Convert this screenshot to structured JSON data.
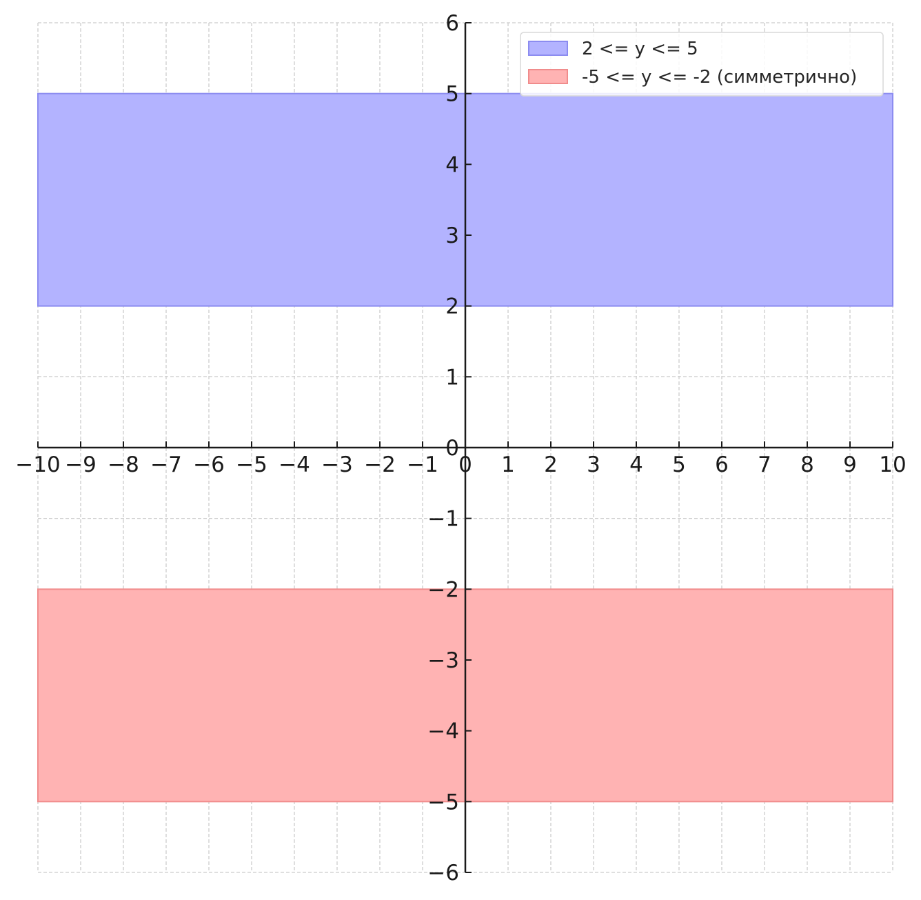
{
  "chart_data": {
    "type": "area",
    "title": "",
    "xlabel": "",
    "ylabel": "",
    "xlim": [
      -10,
      10
    ],
    "ylim": [
      -6,
      6
    ],
    "grid": true,
    "grid_style": "dashed",
    "axes_style": "centered-at-origin",
    "legend_position": "top-right",
    "x_ticks": [
      "−10",
      "−9",
      "−8",
      "−7",
      "−6",
      "−5",
      "−4",
      "−3",
      "−2",
      "−1",
      "0",
      "1",
      "2",
      "3",
      "4",
      "5",
      "6",
      "7",
      "8",
      "9",
      "10"
    ],
    "y_ticks": [
      "−6",
      "−5",
      "−4",
      "−3",
      "−2",
      "−1",
      "0",
      "1",
      "2",
      "3",
      "4",
      "5",
      "6"
    ],
    "x_tick_values": [
      -10,
      -9,
      -8,
      -7,
      -6,
      -5,
      -4,
      -3,
      -2,
      -1,
      0,
      1,
      2,
      3,
      4,
      5,
      6,
      7,
      8,
      9,
      10
    ],
    "y_tick_values": [
      -6,
      -5,
      -4,
      -3,
      -2,
      -1,
      0,
      1,
      2,
      3,
      4,
      5,
      6
    ],
    "series": [
      {
        "name": "2 <= y <= 5",
        "x": [
          -10,
          10
        ],
        "y_lower": 2,
        "y_upper": 5,
        "fill_color": "#b3b3ff",
        "edge_color": "#8c8cf0"
      },
      {
        "name": "-5 <= y <= -2 (симметрично)",
        "x": [
          -10,
          10
        ],
        "y_lower": -5,
        "y_upper": -2,
        "fill_color": "#ffb3b3",
        "edge_color": "#f08c8c"
      }
    ]
  }
}
